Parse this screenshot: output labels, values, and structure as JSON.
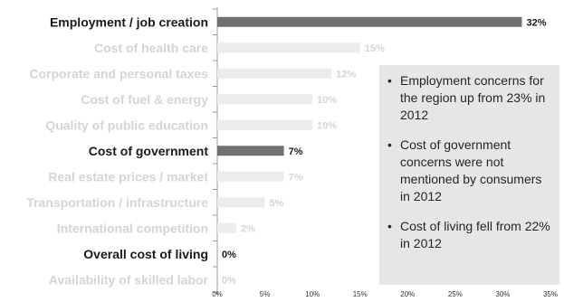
{
  "chart_data": {
    "type": "bar",
    "orientation": "horizontal",
    "categories": [
      "Employment / job creation",
      "Cost of health care",
      "Corporate and personal taxes",
      "Cost of fuel & energy",
      "Quality of public education",
      "Cost of government",
      "Real estate prices / market",
      "Transportation / infrastructure",
      "International competition",
      "Overall cost of living",
      "Availability of skilled labor"
    ],
    "values": [
      32,
      15,
      12,
      10,
      10,
      7,
      7,
      5,
      2,
      0,
      0
    ],
    "value_labels": [
      "32%",
      "15%",
      "12%",
      "10%",
      "10%",
      "7%",
      "7%",
      "5%",
      "2%",
      "0%",
      "0%"
    ],
    "highlighted": [
      true,
      false,
      false,
      false,
      false,
      true,
      false,
      false,
      false,
      true,
      false
    ],
    "xlim": [
      0,
      35
    ],
    "x_ticks": [
      "0%",
      "5%",
      "10%",
      "15%",
      "20%",
      "25%",
      "30%",
      "35%"
    ],
    "title": "",
    "xlabel": "",
    "ylabel": "",
    "colors": {
      "highlight_bar": "#707070",
      "highlight_text": "#1a1a1a",
      "muted_bar": "#ececec",
      "muted_text": "#d4d4d4",
      "axis": "#9a9a9a"
    }
  },
  "notes": [
    "Employment concerns for the region up from 23% in 2012",
    "Cost of government concerns were not mentioned by consumers in 2012",
    "Cost of living fell from 22% in 2012"
  ]
}
